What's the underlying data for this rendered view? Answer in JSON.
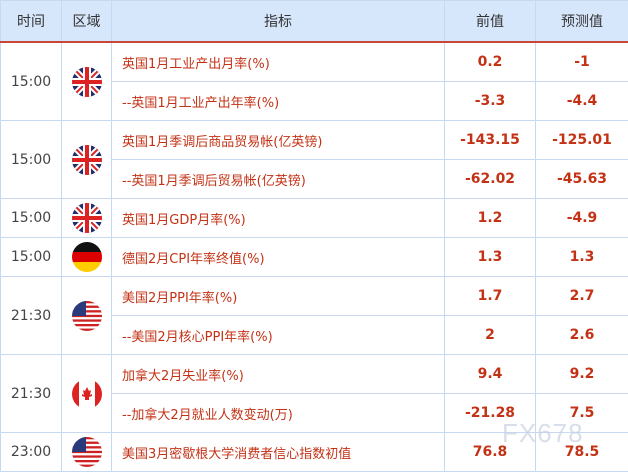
{
  "header": {
    "time": "时间",
    "region": "区域",
    "indicator": "指标",
    "previous": "前值",
    "forecast": "预测值"
  },
  "groups": [
    {
      "time": "15:00",
      "flag": "uk-flag-icon",
      "rows": [
        {
          "indicator": "英国1月工业产出月率(%)",
          "previous": "0.2",
          "forecast": "-1"
        },
        {
          "indicator": "--英国1月工业产出年率(%)",
          "previous": "-3.3",
          "forecast": "-4.4"
        }
      ]
    },
    {
      "time": "15:00",
      "flag": "uk-flag-icon",
      "rows": [
        {
          "indicator": "英国1月季调后商品贸易帐(亿英镑)",
          "previous": "-143.15",
          "forecast": "-125.01"
        },
        {
          "indicator": "--英国1月季调后贸易帐(亿英镑)",
          "previous": "-62.02",
          "forecast": "-45.63"
        }
      ]
    },
    {
      "time": "15:00",
      "flag": "uk-flag-icon",
      "rows": [
        {
          "indicator": "英国1月GDP月率(%)",
          "previous": "1.2",
          "forecast": "-4.9"
        }
      ]
    },
    {
      "time": "15:00",
      "flag": "germany-flag-icon",
      "rows": [
        {
          "indicator": "德国2月CPI年率终值(%)",
          "previous": "1.3",
          "forecast": "1.3"
        }
      ]
    },
    {
      "time": "21:30",
      "flag": "us-flag-icon",
      "rows": [
        {
          "indicator": "美国2月PPI年率(%)",
          "previous": "1.7",
          "forecast": "2.7"
        },
        {
          "indicator": "--美国2月核心PPI年率(%)",
          "previous": "2",
          "forecast": "2.6"
        }
      ]
    },
    {
      "time": "21:30",
      "flag": "canada-flag-icon",
      "rows": [
        {
          "indicator": "加拿大2月失业率(%)",
          "previous": "9.4",
          "forecast": "9.2"
        },
        {
          "indicator": "--加拿大2月就业人数变动(万)",
          "previous": "-21.28",
          "forecast": "7.5"
        }
      ]
    },
    {
      "time": "23:00",
      "flag": "us-flag-icon",
      "rows": [
        {
          "indicator": "美国3月密歇根大学消费者信心指数初值",
          "previous": "76.8",
          "forecast": "78.5"
        }
      ]
    }
  ],
  "watermark": "FX678",
  "colors": {
    "header_bg": "#d6e6fb",
    "accent": "#c43216",
    "border": "#c8d8f0"
  }
}
